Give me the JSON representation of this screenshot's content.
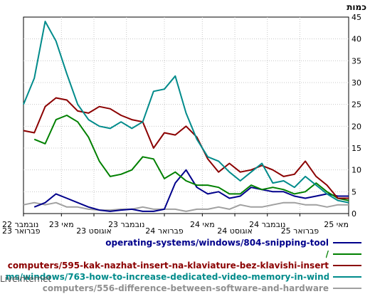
{
  "brand": "LiveInternet",
  "chart_data": {
    "type": "line",
    "ylabel": "כמות",
    "ylim": [
      0,
      45
    ],
    "yticks": [
      0,
      5,
      10,
      15,
      20,
      25,
      30,
      35,
      40,
      45
    ],
    "x_reversed": true,
    "grid": true,
    "legend": "bottom",
    "x_ticks": [
      {
        "label": "מאי 25",
        "row": 1,
        "i": 0
      },
      {
        "label": "פברואר 25",
        "row": 2,
        "i": 4.5
      },
      {
        "label": "נובמבר 24",
        "row": 1,
        "i": 7.5
      },
      {
        "label": "אוגוסט 24",
        "row": 2,
        "i": 10.5
      },
      {
        "label": "מאי 24",
        "row": 1,
        "i": 13.5
      },
      {
        "label": "פברואר 24",
        "row": 2,
        "i": 17
      },
      {
        "label": "נובמבר 23",
        "row": 1,
        "i": 20.5
      },
      {
        "label": "אוגוסט 23",
        "row": 2,
        "i": 23.5
      },
      {
        "label": "מאי 23",
        "row": 1,
        "i": 26.5
      },
      {
        "label": "פברואר 23",
        "row": 2,
        "i": 30
      },
      {
        "label": "נובמבר 22",
        "row": 1,
        "i": 33.5
      }
    ],
    "series": [
      {
        "name": "operating-systems/windows/804-snipping-tool",
        "color": "#00008b",
        "values": [
          4,
          4,
          4.5,
          4,
          3.5,
          4,
          5,
          5,
          5.5,
          6,
          4,
          3.5,
          5,
          4.5,
          6,
          10,
          7,
          1,
          0.5,
          0.5,
          1,
          0.8,
          0.5,
          0.8,
          1.5,
          2.5,
          3.5,
          4.5,
          2.5,
          1.5
        ]
      },
      {
        "name": "/",
        "color": "#008000",
        "values": [
          3,
          3.5,
          5,
          7,
          5,
          4.5,
          5.5,
          6,
          5.5,
          6.5,
          4.5,
          4.5,
          6,
          6.5,
          6.5,
          7.5,
          9.5,
          8,
          12.5,
          13,
          10,
          9,
          8.5,
          12,
          17.5,
          21,
          22.5,
          21.5,
          16,
          17
        ]
      },
      {
        "name": "computers/595-kak-nazhat-insert-na-klaviature-bez-klavishi-insert",
        "color": "#8b0000",
        "values": [
          3.5,
          3.5,
          6.5,
          8.5,
          12,
          9,
          8.5,
          10,
          11,
          10,
          9.5,
          11.5,
          9.5,
          12.5,
          17.5,
          20,
          18,
          18.5,
          15,
          21,
          21.5,
          22.5,
          24,
          24.5,
          23,
          23.5,
          26,
          26.5,
          24.5,
          18.5,
          19
        ]
      },
      {
        "name": "ms/windows/763-how-to-increase-dedicated-video-memory-in-windows-10",
        "color": "#008b8b",
        "values": [
          2.5,
          3,
          4.5,
          6.5,
          8.5,
          6,
          7.5,
          7,
          11.5,
          9.5,
          7.5,
          9.5,
          12,
          13,
          17,
          23,
          31.5,
          28.5,
          28,
          21,
          19.5,
          21,
          19.5,
          20,
          21.5,
          25,
          32,
          39.5,
          44,
          31,
          25
        ]
      },
      {
        "name": "computers/556-difference-between-software-and-hardware",
        "color": "#a0a0a0",
        "values": [
          2,
          2,
          1.5,
          2,
          2,
          2.5,
          2.5,
          2,
          1.5,
          1.5,
          2,
          1,
          1.5,
          1,
          1,
          0.5,
          1,
          1,
          1,
          1.5,
          1,
          1,
          0.8,
          0.8,
          1,
          1.5,
          1.5,
          2.5,
          2,
          2.5,
          2
        ]
      }
    ]
  }
}
